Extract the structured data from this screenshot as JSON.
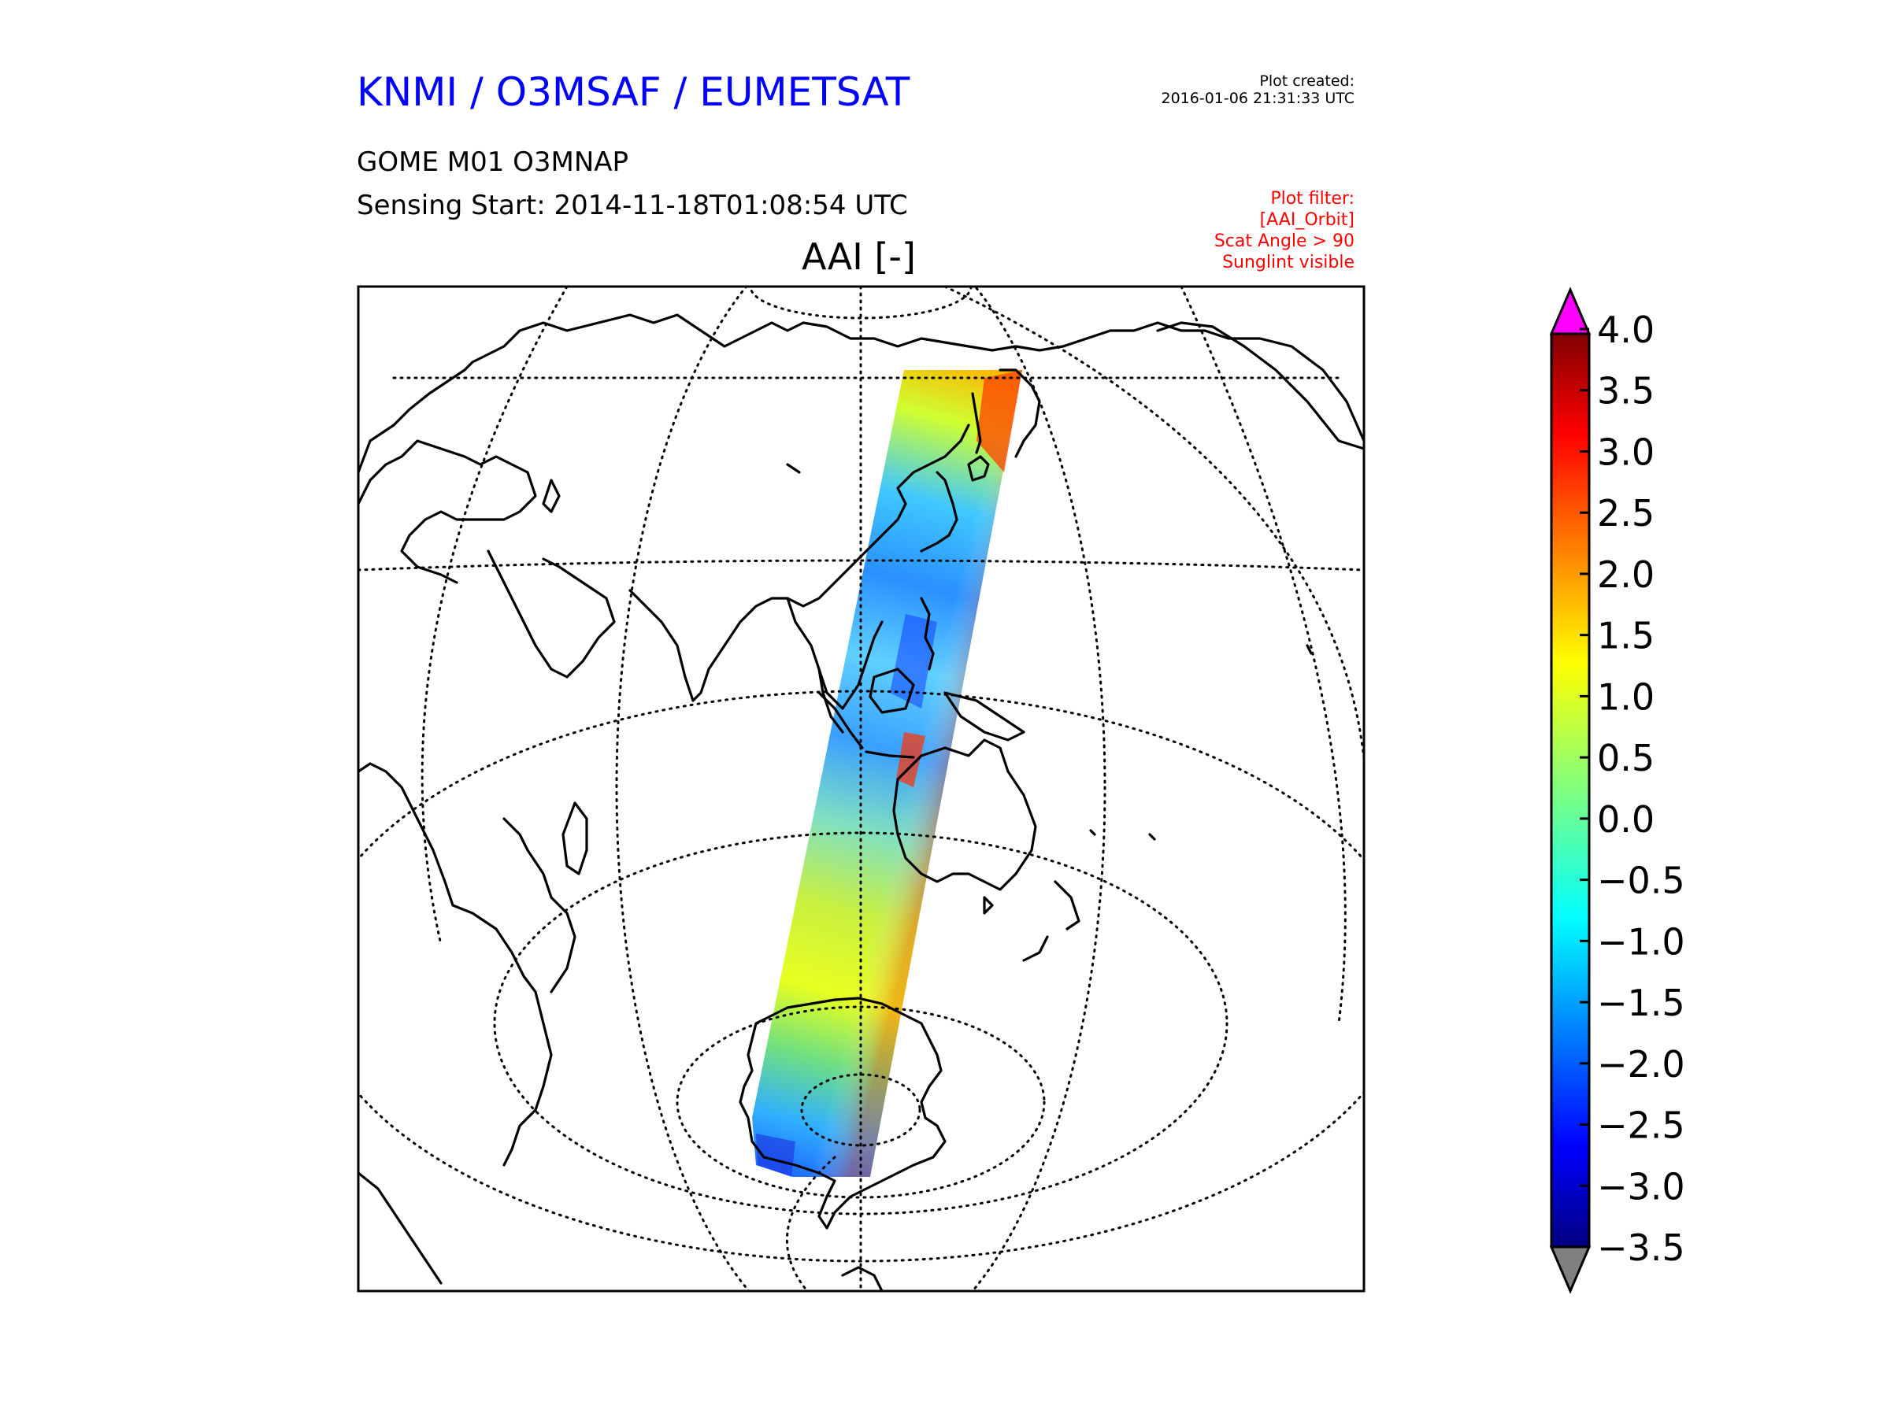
{
  "header": {
    "title": "KNMI / O3MSAF / EUMETSAT",
    "title_color": "#0000ff",
    "product": "GOME M01 O3MNAP",
    "sensing_start": "Sensing Start: 2014-11-18T01:08:54 UTC",
    "plot_title": "AAI [-]",
    "plot_created_label": "Plot created:",
    "plot_created_time": "2016-01-06 21:31:33 UTC"
  },
  "filters": {
    "color": "#ff0000",
    "lines": [
      "Plot filter:",
      "[AAI_Orbit]",
      "Scat Angle > 90",
      "Sunglint visible"
    ]
  },
  "colorbar": {
    "ticks": [
      "4.0",
      "3.5",
      "3.0",
      "2.5",
      "2.0",
      "1.5",
      "1.0",
      "0.5",
      "0.0",
      "−0.5",
      "−1.0",
      "−1.5",
      "−2.0",
      "−2.5",
      "−3.0",
      "−3.5"
    ],
    "over_color": "#ff00ff",
    "under_color": "#808080",
    "colormap": "jet"
  },
  "map": {
    "projection": "azimuthal, centered on East Asia / Indian Ocean",
    "graticule_style": "dotted",
    "coastline_color": "#000000",
    "swath": "GOME-2 orbit swath from Kamchatka / Japan across Indonesia and Western Australia to Antarctica"
  }
}
